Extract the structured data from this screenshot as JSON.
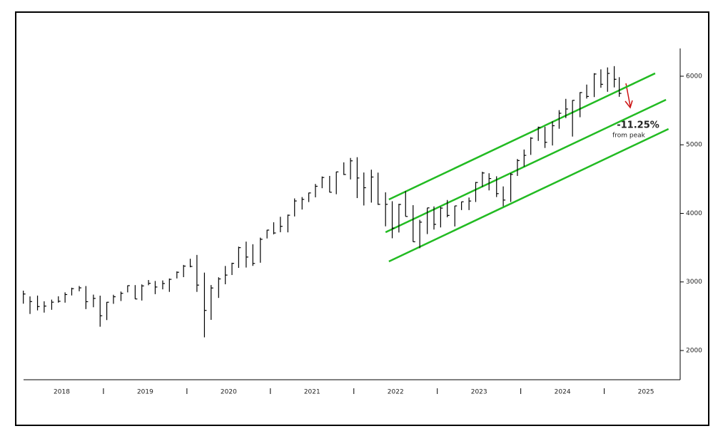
{
  "chart_data": {
    "type": "ohlc",
    "color": "#000000",
    "x": [
      2018.04,
      2018.12,
      2018.21,
      2018.29,
      2018.38,
      2018.46,
      2018.54,
      2018.62,
      2018.71,
      2018.79,
      2018.88,
      2018.96,
      2019.04,
      2019.12,
      2019.21,
      2019.29,
      2019.38,
      2019.46,
      2019.54,
      2019.62,
      2019.71,
      2019.79,
      2019.88,
      2019.96,
      2020.04,
      2020.12,
      2020.21,
      2020.29,
      2020.38,
      2020.46,
      2020.54,
      2020.62,
      2020.71,
      2020.79,
      2020.88,
      2020.96,
      2021.04,
      2021.12,
      2021.21,
      2021.29,
      2021.38,
      2021.46,
      2021.54,
      2021.62,
      2021.71,
      2021.79,
      2021.88,
      2021.96,
      2022.04,
      2022.12,
      2022.21,
      2022.29,
      2022.38,
      2022.46,
      2022.54,
      2022.62,
      2022.71,
      2022.79,
      2022.88,
      2022.96,
      2023.04,
      2023.12,
      2023.21,
      2023.29,
      2023.38,
      2023.46,
      2023.54,
      2023.62,
      2023.71,
      2023.79,
      2023.88,
      2023.96,
      2024.04,
      2024.12,
      2024.21,
      2024.29,
      2024.38,
      2024.46,
      2024.54,
      2024.62,
      2024.71,
      2024.79,
      2024.88,
      2024.96,
      2025.04,
      2025.12,
      2025.18
    ],
    "high": [
      2873,
      2789,
      2801,
      2718,
      2742,
      2791,
      2848,
      2916,
      2941,
      2940,
      2815,
      2800,
      2708,
      2813,
      2860,
      2949,
      2954,
      2964,
      3028,
      3014,
      3022,
      3050,
      3154,
      3248,
      3338,
      3394,
      3136,
      2955,
      3068,
      3233,
      3280,
      3515,
      3588,
      3550,
      3646,
      3760,
      3870,
      3950,
      3983,
      4218,
      4238,
      4302,
      4429,
      4538,
      4546,
      4608,
      4744,
      4808,
      4819,
      4596,
      4637,
      4594,
      4307,
      4177,
      4140,
      4325,
      4120,
      3906,
      4080,
      4101,
      4095,
      4195,
      4110,
      4170,
      4231,
      4458,
      4607,
      4585,
      4541,
      4393,
      4587,
      4793,
      4931,
      5111,
      5265,
      5264,
      5342,
      5505,
      5670,
      5651,
      5767,
      5878,
      6044,
      6100,
      6128,
      6147,
      5986
    ],
    "low": [
      2683,
      2533,
      2585,
      2553,
      2594,
      2698,
      2698,
      2803,
      2864,
      2604,
      2631,
      2347,
      2444,
      2681,
      2722,
      2848,
      2751,
      2729,
      2952,
      2822,
      2892,
      2855,
      3051,
      3070,
      3214,
      2855,
      2192,
      2447,
      2767,
      2966,
      3101,
      3205,
      3210,
      3234,
      3280,
      3634,
      3694,
      3725,
      3723,
      3955,
      4056,
      4165,
      4234,
      4367,
      4306,
      4279,
      4560,
      4495,
      4223,
      4115,
      4157,
      4124,
      3811,
      3637,
      3721,
      3955,
      3585,
      3492,
      3698,
      3764,
      3795,
      3943,
      3809,
      4048,
      4048,
      4166,
      4386,
      4335,
      4238,
      4104,
      4167,
      4546,
      4682,
      4853,
      5057,
      4954,
      4990,
      5234,
      5390,
      5120,
      5402,
      5674,
      5696,
      5832,
      5773,
      5837,
      5700
    ],
    "close": [
      2824,
      2714,
      2641,
      2648,
      2705,
      2718,
      2816,
      2902,
      2914,
      2712,
      2760,
      2507,
      2704,
      2784,
      2834,
      2946,
      2752,
      2942,
      2980,
      2926,
      2977,
      3038,
      3141,
      3231,
      3226,
      2954,
      2585,
      2912,
      3044,
      3100,
      3271,
      3500,
      3363,
      3270,
      3622,
      3756,
      3714,
      3811,
      3973,
      4181,
      4204,
      4298,
      4395,
      4523,
      4308,
      4605,
      4567,
      4766,
      4516,
      4374,
      4530,
      4132,
      4132,
      3785,
      4130,
      3955,
      3586,
      3872,
      4080,
      3840,
      4077,
      3970,
      4109,
      4169,
      4180,
      4450,
      4589,
      4508,
      4288,
      4194,
      4568,
      4770,
      4846,
      5096,
      5254,
      5036,
      5278,
      5460,
      5522,
      5648,
      5762,
      5705,
      6032,
      5882,
      6041,
      5955,
      5750
    ],
    "xlim": [
      2018.0,
      2025.91
    ],
    "ylim": [
      1574,
      6405
    ],
    "xticks": [
      {
        "value": 2018.5,
        "label": "2018"
      },
      {
        "value": 2019.5,
        "label": "2019"
      },
      {
        "value": 2020.5,
        "label": "2020"
      },
      {
        "value": 2021.5,
        "label": "2021"
      },
      {
        "value": 2022.5,
        "label": "2022"
      },
      {
        "value": 2023.5,
        "label": "2023"
      },
      {
        "value": 2024.5,
        "label": "2024"
      },
      {
        "value": 2025.5,
        "label": "2025"
      }
    ],
    "year_bounds": [
      2019,
      2020,
      2021,
      2022,
      2023,
      2024,
      2025
    ],
    "yticks": [
      2000,
      3000,
      4000,
      5000,
      6000
    ],
    "trendlines": {
      "color": "#22bb22",
      "lines": [
        {
          "x": [
            2022.42,
            2025.61
          ],
          "y": [
            4203,
            6042
          ]
        },
        {
          "x": [
            2022.38,
            2025.74
          ],
          "y": [
            3725,
            5657
          ]
        },
        {
          "x": [
            2022.42,
            2025.77
          ],
          "y": [
            3299,
            5231
          ]
        }
      ]
    },
    "annotation": {
      "text": "-11.25%",
      "subtext": "from peak",
      "color": "#cc1111"
    }
  }
}
